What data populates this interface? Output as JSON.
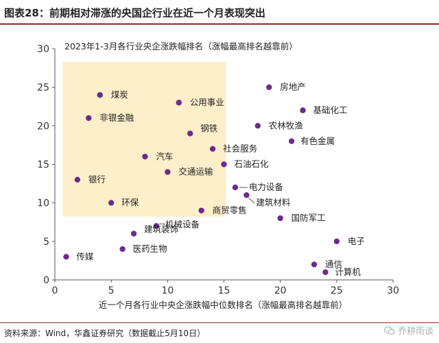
{
  "header": {
    "title": "图表28：前期相对滞涨的央国企行业在近一个月表现突出"
  },
  "footer": {
    "source": "资料来源：Wind，华鑫证券研究（数据截止5月10日）",
    "watermark": "乔耕雨谈"
  },
  "chart_data": {
    "type": "scatter",
    "title": "2023年1-3月各行业央企涨跌幅排名（涨幅最高排名越靠前）",
    "xlabel": "近一个月各行业中央企涨跌幅中位数排名（涨幅最高排名越靠前）",
    "ylabel": "",
    "xlim": [
      0,
      30
    ],
    "ylim": [
      0,
      30
    ],
    "xticks": [
      0,
      5,
      10,
      15,
      20,
      25,
      30
    ],
    "yticks": [
      0,
      5,
      10,
      15,
      20,
      25,
      30
    ],
    "grid": false,
    "point_color": "#6b2d8c",
    "highlight_color": "#fcefc9",
    "highlight_region": {
      "x": [
        1,
        15
      ],
      "y": [
        8.2,
        28.3
      ]
    },
    "points": [
      {
        "label": "房地产",
        "x": 19,
        "y": 25
      },
      {
        "label": "煤炭",
        "x": 4,
        "y": 24
      },
      {
        "label": "公用事业",
        "x": 11,
        "y": 23
      },
      {
        "label": "基础化工",
        "x": 22,
        "y": 22
      },
      {
        "label": "非银金融",
        "x": 3,
        "y": 21
      },
      {
        "label": "农林牧渔",
        "x": 18,
        "y": 20
      },
      {
        "label": "钢铁",
        "x": 12,
        "y": 19
      },
      {
        "label": "有色金属",
        "x": 21,
        "y": 18
      },
      {
        "label": "社会服务",
        "x": 14,
        "y": 17
      },
      {
        "label": "汽车",
        "x": 8,
        "y": 16
      },
      {
        "label": "石油石化",
        "x": 15,
        "y": 15
      },
      {
        "label": "交通运输",
        "x": 10,
        "y": 14
      },
      {
        "label": "银行",
        "x": 2,
        "y": 13
      },
      {
        "label": "电力设备",
        "x": 16,
        "y": 12
      },
      {
        "label": "建筑材料",
        "x": 17,
        "y": 11
      },
      {
        "label": "环保",
        "x": 5,
        "y": 10
      },
      {
        "label": "商贸零售",
        "x": 13,
        "y": 9
      },
      {
        "label": "国防军工",
        "x": 20,
        "y": 8
      },
      {
        "label": "机械设备",
        "x": 9,
        "y": 7
      },
      {
        "label": "建筑装饰",
        "x": 7,
        "y": 6
      },
      {
        "label": "电子",
        "x": 25,
        "y": 5
      },
      {
        "label": "医药生物",
        "x": 6,
        "y": 4
      },
      {
        "label": "传媒",
        "x": 1,
        "y": 3
      },
      {
        "label": "通信",
        "x": 23,
        "y": 2
      },
      {
        "label": "计算机",
        "x": 24,
        "y": 1
      }
    ]
  }
}
